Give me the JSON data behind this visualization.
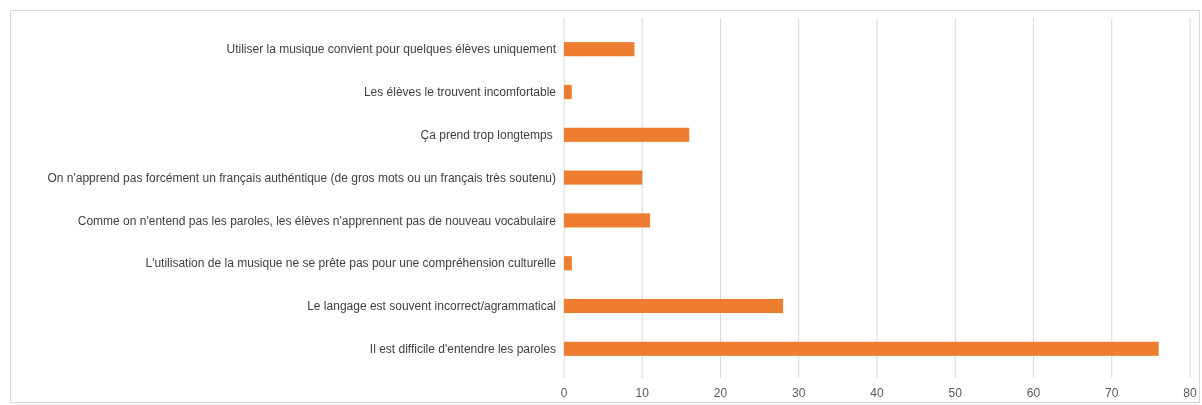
{
  "chart_data": {
    "type": "bar",
    "orientation": "horizontal",
    "categories": [
      "Utiliser la musique convient pour quelques élèves uniquement",
      "Les élèves le trouvent incomfortable",
      "Ça prend trop longtemps ",
      "On n'apprend pas forcément un français authéntique (de gros mots ou un français très soutenu)",
      "Comme on n'entend pas les paroles, les élèves n'apprennent pas de nouveau vocabulaire",
      "L'utilisation de la musique ne se prête pas pour une compréhension culturelle",
      "Le langage est souvent incorrect/agrammatical",
      "Il est difficile d'entendre les paroles"
    ],
    "values": [
      9,
      1,
      16,
      10,
      11,
      1,
      28,
      76
    ],
    "color": "#ed7d31",
    "xlim": [
      0,
      80
    ],
    "xticks": [
      0,
      10,
      20,
      30,
      40,
      50,
      60,
      70,
      80
    ],
    "grid": "x"
  }
}
